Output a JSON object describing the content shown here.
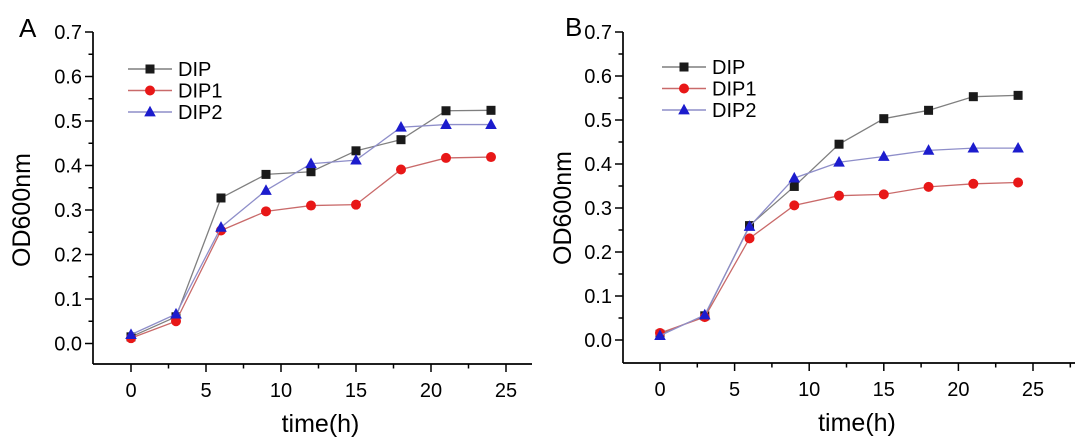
{
  "figure": {
    "background": "#ffffff",
    "panel_labels": [
      "A",
      "B"
    ]
  },
  "chart_data": [
    {
      "type": "line",
      "panel_label": "A",
      "xlabel": "time(h)",
      "ylabel": "OD600nm",
      "xlim": [
        -2.5,
        26.8
      ],
      "ylim": [
        -0.05,
        0.7
      ],
      "x_major_ticks": [
        0,
        5,
        10,
        15,
        20,
        25
      ],
      "x_minor_step": 2.5,
      "y_major_ticks": [
        0.0,
        0.1,
        0.2,
        0.3,
        0.4,
        0.5,
        0.6,
        0.7
      ],
      "y_minor_step": 0.05,
      "grid": false,
      "legend_position": "upper-left",
      "x": [
        0,
        3,
        6,
        9,
        12,
        15,
        18,
        21,
        24
      ],
      "series": [
        {
          "name": "DIP",
          "marker": "square",
          "marker_color": "#1a1a1a",
          "line_color": "#7f7f7f",
          "values": [
            0.015,
            0.06,
            0.327,
            0.38,
            0.386,
            0.433,
            0.458,
            0.523,
            0.524
          ]
        },
        {
          "name": "DIP1",
          "marker": "circle",
          "marker_color": "#e81717",
          "line_color": "#c96a6a",
          "values": [
            0.012,
            0.05,
            0.254,
            0.297,
            0.31,
            0.312,
            0.391,
            0.417,
            0.419
          ]
        },
        {
          "name": "DIP2",
          "marker": "triangle",
          "marker_color": "#1c1ccd",
          "line_color": "#8e8ec9",
          "values": [
            0.02,
            0.066,
            0.261,
            0.344,
            0.404,
            0.412,
            0.486,
            0.492,
            0.492
          ]
        }
      ]
    },
    {
      "type": "line",
      "panel_label": "B",
      "xlabel": "time(h)",
      "ylabel": "OD600nm",
      "xlim": [
        -2.5,
        27.8
      ],
      "ylim": [
        -0.05,
        0.7
      ],
      "x_major_ticks": [
        0,
        5,
        10,
        15,
        20,
        25
      ],
      "x_minor_step": 2.5,
      "y_major_ticks": [
        0.0,
        0.1,
        0.2,
        0.3,
        0.4,
        0.5,
        0.6,
        0.7
      ],
      "y_minor_step": 0.05,
      "grid": false,
      "legend_position": "upper-left",
      "x": [
        0,
        3,
        6,
        9,
        12,
        15,
        18,
        21,
        24
      ],
      "series": [
        {
          "name": "DIP",
          "marker": "square",
          "marker_color": "#1a1a1a",
          "line_color": "#7f7f7f",
          "values": [
            0.013,
            0.055,
            0.26,
            0.349,
            0.445,
            0.503,
            0.522,
            0.553,
            0.556
          ]
        },
        {
          "name": "DIP1",
          "marker": "circle",
          "marker_color": "#e81717",
          "line_color": "#c96a6a",
          "values": [
            0.016,
            0.052,
            0.231,
            0.306,
            0.328,
            0.331,
            0.348,
            0.355,
            0.358
          ]
        },
        {
          "name": "DIP2",
          "marker": "triangle",
          "marker_color": "#1c1ccd",
          "line_color": "#8e8ec9",
          "values": [
            0.01,
            0.057,
            0.258,
            0.368,
            0.404,
            0.417,
            0.431,
            0.436,
            0.436
          ]
        }
      ]
    }
  ]
}
